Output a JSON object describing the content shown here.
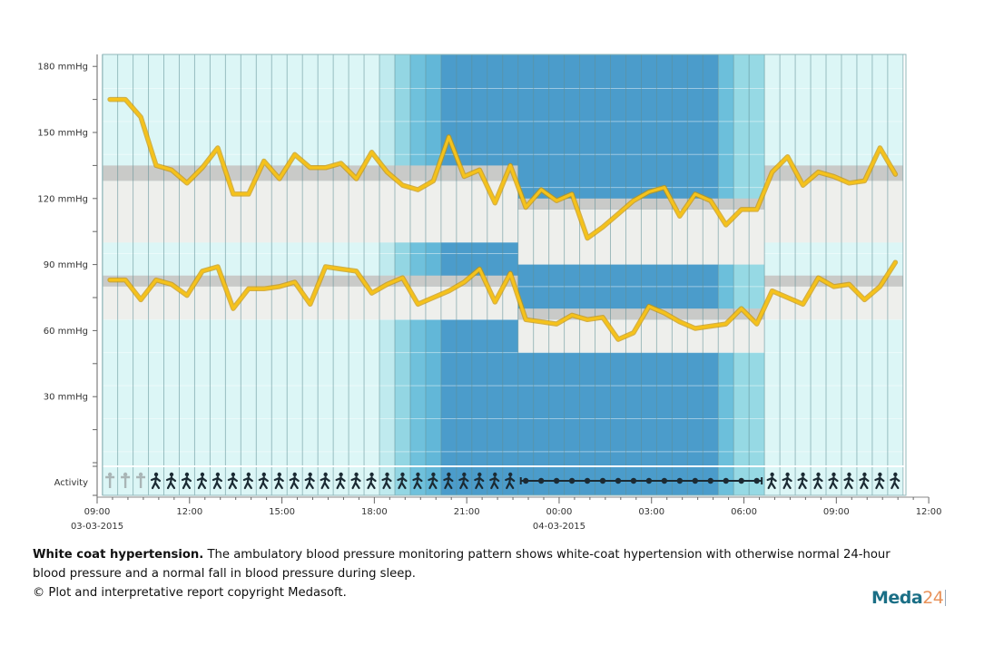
{
  "chart_data": {
    "type": "line",
    "ylabel_unit": "mmHg",
    "y_ticks": [
      "180 mmHg",
      "150 mmHg",
      "120 mmHg",
      "90 mmHg",
      "60 mmHg",
      "30 mmHg"
    ],
    "y_tick_values": [
      180,
      150,
      120,
      90,
      60,
      30
    ],
    "ylim": [
      0,
      185
    ],
    "x_ticks": [
      {
        "time": "09:00",
        "date": "03-03-2015"
      },
      {
        "time": "12:00",
        "date": ""
      },
      {
        "time": "15:00",
        "date": ""
      },
      {
        "time": "18:00",
        "date": ""
      },
      {
        "time": "21:00",
        "date": ""
      },
      {
        "time": "00:00",
        "date": "04-03-2015"
      },
      {
        "time": "03:00",
        "date": ""
      },
      {
        "time": "06:00",
        "date": ""
      },
      {
        "time": "09:00",
        "date": ""
      },
      {
        "time": "12:00",
        "date": ""
      }
    ],
    "xlim": [
      "03-03-2015 09:00",
      "04-03-2015 12:00"
    ],
    "reading_start": "03-03-2015 09:25",
    "reading_interval_minutes": 30,
    "series": [
      {
        "values": [
          165,
          165,
          157,
          135,
          133,
          127,
          134,
          143,
          122,
          122,
          137,
          129,
          140,
          134,
          134,
          136,
          129,
          141,
          132,
          126,
          124,
          128,
          148,
          130,
          133,
          118,
          135,
          116,
          124,
          119,
          122,
          102,
          107,
          113,
          119,
          123,
          125,
          112,
          122,
          119,
          108,
          115,
          115,
          132,
          139,
          126,
          132,
          130,
          127,
          128,
          143,
          131
        ]
      },
      {
        "values": [
          83,
          83,
          74,
          83,
          81,
          76,
          87,
          89,
          70,
          79,
          79,
          80,
          82,
          72,
          89,
          88,
          87,
          77,
          81,
          84,
          72,
          75,
          78,
          82,
          88,
          73,
          86,
          65,
          64,
          63,
          67,
          65,
          66,
          56,
          59,
          71,
          68,
          64,
          61,
          62,
          63,
          70,
          63,
          78,
          75,
          72,
          84,
          80,
          81,
          74,
          80,
          91
        ]
      }
    ],
    "line_color": "#f5c21b",
    "reference_bands": [
      {
        "period": [
          "03-03-2015 09:10",
          "03-03-2015 22:40"
        ],
        "systolic": {
          "normal": [
            100,
            128
          ],
          "borderline": [
            128,
            135
          ]
        },
        "diastolic": {
          "normal": [
            65,
            80
          ],
          "borderline": [
            80,
            85
          ]
        }
      },
      {
        "period": [
          "03-03-2015 22:40",
          "04-03-2015 06:40"
        ],
        "systolic": {
          "normal": [
            90,
            115
          ],
          "borderline": [
            115,
            120
          ]
        },
        "diastolic": {
          "normal": [
            50,
            65
          ],
          "borderline": [
            65,
            70
          ]
        }
      },
      {
        "period": [
          "04-03-2015 06:40",
          "04-03-2015 11:10"
        ],
        "systolic": {
          "normal": [
            100,
            128
          ],
          "borderline": [
            128,
            135
          ]
        },
        "diastolic": {
          "normal": [
            65,
            80
          ],
          "borderline": [
            80,
            85
          ]
        }
      }
    ],
    "daylight_shading": [
      {
        "from": "03-03-2015 09:10",
        "to": "03-03-2015 18:10",
        "color": "#dcf6f6"
      },
      {
        "from": "03-03-2015 18:10",
        "to": "03-03-2015 18:40",
        "color": "#bfeaee"
      },
      {
        "from": "03-03-2015 18:40",
        "to": "03-03-2015 19:10",
        "color": "#93d6e3"
      },
      {
        "from": "03-03-2015 19:10",
        "to": "03-03-2015 19:40",
        "color": "#6fc1dc"
      },
      {
        "from": "03-03-2015 19:40",
        "to": "03-03-2015 20:10",
        "color": "#62b7d8"
      },
      {
        "from": "03-03-2015 20:10",
        "to": "04-03-2015 05:10",
        "color": "#4b9ccb"
      },
      {
        "from": "04-03-2015 05:10",
        "to": "04-03-2015 05:40",
        "color": "#6cbfdb"
      },
      {
        "from": "04-03-2015 05:40",
        "to": "04-03-2015 06:40",
        "color": "#96d9e4"
      },
      {
        "from": "04-03-2015 06:40",
        "to": "04-03-2015 11:10",
        "color": "#dcf6f6"
      }
    ],
    "activity_label": "Activity",
    "activity": [
      {
        "from": "03-03-2015 09:10",
        "to": "03-03-2015 10:40",
        "icon": "standing-person-icon"
      },
      {
        "from": "03-03-2015 10:40",
        "to": "03-03-2015 22:40",
        "icon": "walking-person-icon"
      },
      {
        "from": "03-03-2015 22:40",
        "to": "04-03-2015 06:40",
        "icon": "lying-sleep-icon"
      },
      {
        "from": "04-03-2015 06:40",
        "to": "04-03-2015 11:10",
        "icon": "walking-person-icon"
      }
    ]
  },
  "caption": {
    "title": "White coat hypertension.",
    "text": " The ambulatory blood pressure monitoring pattern shows white-coat hypertension with otherwise normal 24-hour blood pressure and a normal fall in blood pressure during sleep.",
    "copyright": "© Plot and interpretative report copyright Medasoft."
  },
  "logo": {
    "name": "Meda",
    "number": "24"
  }
}
